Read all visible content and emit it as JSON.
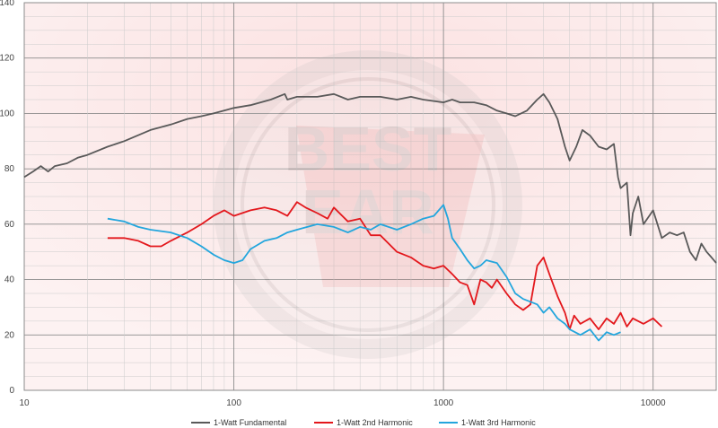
{
  "chart_data": {
    "type": "line",
    "x_scale": "log",
    "xlim": [
      10,
      20000
    ],
    "ylim": [
      0,
      140
    ],
    "y_ticks": [
      0,
      20,
      40,
      60,
      80,
      100,
      120,
      140
    ],
    "x_ticks": [
      10,
      100,
      1000,
      10000
    ],
    "grid": true,
    "legend_position": "bottom",
    "series": [
      {
        "name": "1-Watt Fundamental",
        "color": "#595959",
        "points": [
          [
            10,
            77
          ],
          [
            11,
            79
          ],
          [
            12,
            81
          ],
          [
            13,
            79
          ],
          [
            14,
            81
          ],
          [
            16,
            82
          ],
          [
            18,
            84
          ],
          [
            20,
            85
          ],
          [
            25,
            88
          ],
          [
            30,
            90
          ],
          [
            40,
            94
          ],
          [
            50,
            96
          ],
          [
            60,
            98
          ],
          [
            70,
            99
          ],
          [
            80,
            100
          ],
          [
            100,
            102
          ],
          [
            120,
            103
          ],
          [
            150,
            105
          ],
          [
            175,
            107
          ],
          [
            180,
            105
          ],
          [
            200,
            106
          ],
          [
            250,
            106
          ],
          [
            300,
            107
          ],
          [
            350,
            105
          ],
          [
            400,
            106
          ],
          [
            500,
            106
          ],
          [
            600,
            105
          ],
          [
            700,
            106
          ],
          [
            800,
            105
          ],
          [
            1000,
            104
          ],
          [
            1100,
            105
          ],
          [
            1200,
            104
          ],
          [
            1400,
            104
          ],
          [
            1600,
            103
          ],
          [
            1800,
            101
          ],
          [
            2000,
            100
          ],
          [
            2200,
            99
          ],
          [
            2500,
            101
          ],
          [
            2800,
            105
          ],
          [
            3000,
            107
          ],
          [
            3200,
            104
          ],
          [
            3500,
            98
          ],
          [
            3800,
            88
          ],
          [
            4000,
            83
          ],
          [
            4300,
            88
          ],
          [
            4600,
            94
          ],
          [
            5000,
            92
          ],
          [
            5500,
            88
          ],
          [
            6000,
            87
          ],
          [
            6500,
            89
          ],
          [
            6800,
            77
          ],
          [
            7000,
            73
          ],
          [
            7500,
            75
          ],
          [
            7800,
            56
          ],
          [
            8000,
            64
          ],
          [
            8500,
            70
          ],
          [
            9000,
            60
          ],
          [
            10000,
            65
          ],
          [
            11000,
            55
          ],
          [
            12000,
            57
          ],
          [
            13000,
            56
          ],
          [
            14000,
            57
          ],
          [
            15000,
            50
          ],
          [
            16000,
            47
          ],
          [
            17000,
            53
          ],
          [
            18000,
            50
          ],
          [
            19000,
            48
          ],
          [
            20000,
            46
          ]
        ]
      },
      {
        "name": "1-Watt 2nd Harmonic",
        "color": "#e3171c",
        "points": [
          [
            25,
            55
          ],
          [
            30,
            55
          ],
          [
            35,
            54
          ],
          [
            40,
            52
          ],
          [
            45,
            52
          ],
          [
            50,
            54
          ],
          [
            60,
            57
          ],
          [
            70,
            60
          ],
          [
            80,
            63
          ],
          [
            90,
            65
          ],
          [
            100,
            63
          ],
          [
            120,
            65
          ],
          [
            140,
            66
          ],
          [
            160,
            65
          ],
          [
            180,
            63
          ],
          [
            200,
            68
          ],
          [
            220,
            66
          ],
          [
            250,
            64
          ],
          [
            280,
            62
          ],
          [
            300,
            66
          ],
          [
            350,
            61
          ],
          [
            400,
            62
          ],
          [
            450,
            56
          ],
          [
            500,
            56
          ],
          [
            600,
            50
          ],
          [
            700,
            48
          ],
          [
            800,
            45
          ],
          [
            900,
            44
          ],
          [
            1000,
            45
          ],
          [
            1100,
            42
          ],
          [
            1200,
            39
          ],
          [
            1300,
            38
          ],
          [
            1400,
            31
          ],
          [
            1500,
            40
          ],
          [
            1600,
            39
          ],
          [
            1700,
            37
          ],
          [
            1800,
            40
          ],
          [
            2000,
            35
          ],
          [
            2200,
            31
          ],
          [
            2400,
            29
          ],
          [
            2600,
            31
          ],
          [
            2800,
            45
          ],
          [
            3000,
            48
          ],
          [
            3200,
            42
          ],
          [
            3500,
            34
          ],
          [
            3800,
            28
          ],
          [
            4000,
            22
          ],
          [
            4200,
            27
          ],
          [
            4500,
            24
          ],
          [
            5000,
            26
          ],
          [
            5500,
            22
          ],
          [
            6000,
            26
          ],
          [
            6500,
            24
          ],
          [
            7000,
            28
          ],
          [
            7500,
            23
          ],
          [
            8000,
            26
          ],
          [
            9000,
            24
          ],
          [
            10000,
            26
          ],
          [
            11000,
            23
          ]
        ]
      },
      {
        "name": "1-Watt 3rd Harmonic",
        "color": "#23a6dd",
        "points": [
          [
            25,
            62
          ],
          [
            30,
            61
          ],
          [
            35,
            59
          ],
          [
            40,
            58
          ],
          [
            50,
            57
          ],
          [
            60,
            55
          ],
          [
            70,
            52
          ],
          [
            80,
            49
          ],
          [
            90,
            47
          ],
          [
            100,
            46
          ],
          [
            110,
            47
          ],
          [
            120,
            51
          ],
          [
            140,
            54
          ],
          [
            160,
            55
          ],
          [
            180,
            57
          ],
          [
            200,
            58
          ],
          [
            250,
            60
          ],
          [
            300,
            59
          ],
          [
            350,
            57
          ],
          [
            400,
            59
          ],
          [
            450,
            58
          ],
          [
            500,
            60
          ],
          [
            600,
            58
          ],
          [
            700,
            60
          ],
          [
            800,
            62
          ],
          [
            900,
            63
          ],
          [
            1000,
            67
          ],
          [
            1050,
            62
          ],
          [
            1100,
            55
          ],
          [
            1200,
            51
          ],
          [
            1300,
            47
          ],
          [
            1400,
            44
          ],
          [
            1500,
            45
          ],
          [
            1600,
            47
          ],
          [
            1800,
            46
          ],
          [
            2000,
            41
          ],
          [
            2200,
            35
          ],
          [
            2400,
            33
          ],
          [
            2600,
            32
          ],
          [
            2800,
            31
          ],
          [
            3000,
            28
          ],
          [
            3200,
            30
          ],
          [
            3500,
            26
          ],
          [
            3800,
            24
          ],
          [
            4000,
            22
          ],
          [
            4500,
            20
          ],
          [
            5000,
            22
          ],
          [
            5500,
            18
          ],
          [
            6000,
            21
          ],
          [
            6500,
            20
          ],
          [
            7000,
            21
          ]
        ]
      }
    ]
  }
}
